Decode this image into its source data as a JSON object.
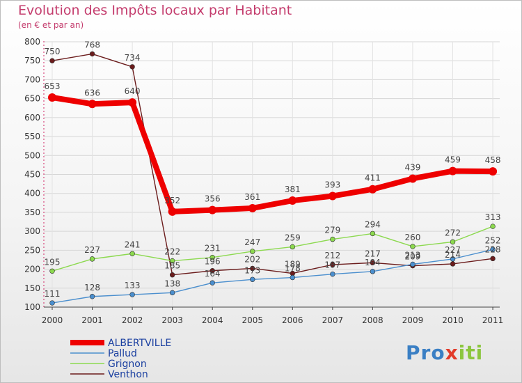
{
  "chart_data": {
    "type": "line",
    "title": "Evolution des Impôts locaux par Habitant",
    "subtitle": "(en € et par an)",
    "xlabel": "",
    "ylabel": "",
    "ylim": [
      100,
      800
    ],
    "yticks": [
      100,
      150,
      200,
      250,
      300,
      350,
      400,
      450,
      500,
      550,
      600,
      650,
      700,
      750,
      800
    ],
    "categories": [
      "2000",
      "2001",
      "2002",
      "2003",
      "2004",
      "2005",
      "2006",
      "2007",
      "2008",
      "2009",
      "2010",
      "2011"
    ],
    "series": [
      {
        "name": "ALBERTVILLE",
        "color": "#ee0000",
        "values": [
          653,
          636,
          640,
          352,
          356,
          361,
          381,
          393,
          411,
          439,
          459,
          458
        ]
      },
      {
        "name": "Pallud",
        "color": "#4b8fce",
        "values": [
          111,
          128,
          133,
          138,
          164,
          173,
          178,
          187,
          194,
          213,
          227,
          252
        ]
      },
      {
        "name": "Grignon",
        "color": "#8cd94f",
        "values": [
          195,
          227,
          241,
          222,
          231,
          247,
          259,
          279,
          294,
          260,
          272,
          313
        ]
      },
      {
        "name": "Venthon",
        "color": "#6b1c1c",
        "values": [
          750,
          768,
          734,
          185,
          196,
          202,
          189,
          212,
          217,
          209,
          214,
          228
        ]
      }
    ],
    "legend_position": "bottom-left"
  },
  "logo": {
    "p1": "Pro",
    "x": "x",
    "p2": "iti"
  }
}
